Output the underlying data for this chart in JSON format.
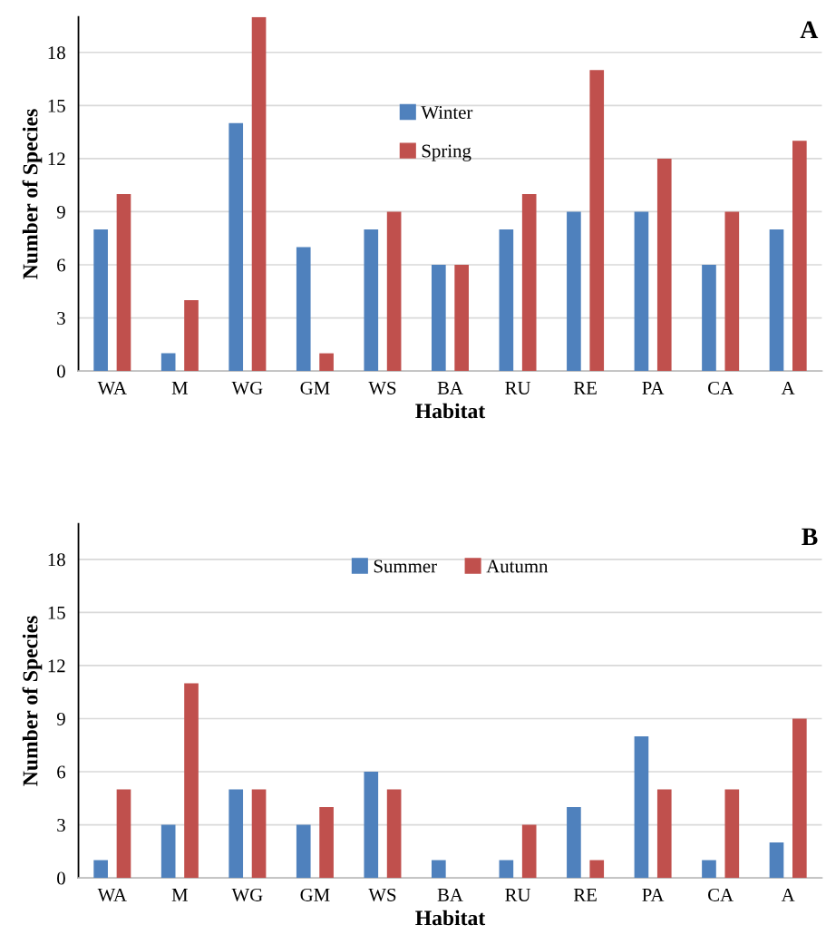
{
  "chart_data": [
    {
      "type": "bar",
      "xlabel": "Habitat",
      "ylabel": "Number of Species",
      "categories": [
        "WA",
        "M",
        "WG",
        "GM",
        "WS",
        "BA",
        "RU",
        "RE",
        "PA",
        "CA",
        "A"
      ],
      "series": [
        {
          "name": "Winter",
          "color": "#4f81bd",
          "values": [
            8,
            1,
            14,
            7,
            8,
            6,
            8,
            9,
            9,
            6,
            8
          ]
        },
        {
          "name": "Spring",
          "color": "#c0504d",
          "values": [
            10,
            4,
            20,
            1,
            9,
            6,
            10,
            17,
            12,
            9,
            13
          ]
        }
      ],
      "ylim": [
        0,
        20
      ],
      "yticks": [
        0,
        3,
        6,
        9,
        12,
        15,
        18
      ],
      "grid": "y",
      "legend": "top",
      "annotations": [
        "A"
      ]
    },
    {
      "type": "bar",
      "xlabel": "Habitat",
      "ylabel": "Number of Species",
      "categories": [
        "WA",
        "M",
        "WG",
        "GM",
        "WS",
        "BA",
        "RU",
        "RE",
        "PA",
        "CA",
        "A"
      ],
      "series": [
        {
          "name": "Summer",
          "color": "#4f81bd",
          "values": [
            1,
            3,
            5,
            3,
            6,
            1,
            1,
            4,
            8,
            1,
            2
          ]
        },
        {
          "name": "Autumn",
          "color": "#c0504d",
          "values": [
            5,
            11,
            5,
            4,
            5,
            0,
            3,
            1,
            5,
            5,
            9
          ]
        }
      ],
      "ylim": [
        0,
        20
      ],
      "yticks": [
        0,
        3,
        6,
        9,
        12,
        15,
        18
      ],
      "grid": "y",
      "legend": "top",
      "annotations": [
        "B"
      ]
    }
  ]
}
